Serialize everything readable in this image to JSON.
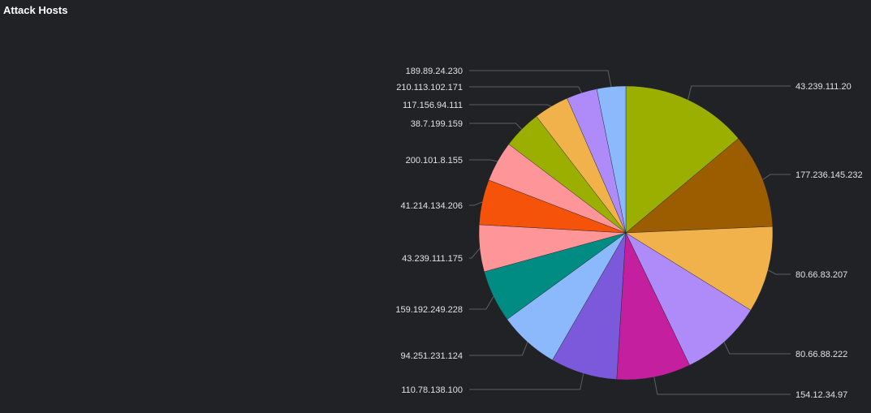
{
  "panel": {
    "title": "Attack Hosts"
  },
  "chart_data": {
    "type": "pie",
    "title": "Attack Hosts",
    "slices": [
      {
        "label": "43.239.111.20",
        "value": 14.0,
        "color": "#9aaf00"
      },
      {
        "label": "177.236.145.232",
        "value": 10.5,
        "color": "#9b5d00"
      },
      {
        "label": "80.66.83.207",
        "value": 9.6,
        "color": "#f2b24b"
      },
      {
        "label": "80.66.88.222",
        "value": 9.1,
        "color": "#af8bfa"
      },
      {
        "label": "154.12.34.97",
        "value": 8.2,
        "color": "#c41f9e"
      },
      {
        "label": "110.78.138.100",
        "value": 7.4,
        "color": "#7c58da"
      },
      {
        "label": "94.251.231.124",
        "value": 6.7,
        "color": "#8cb9fb"
      },
      {
        "label": "159.192.249.228",
        "value": 5.8,
        "color": "#008c82"
      },
      {
        "label": "43.239.111.175",
        "value": 5.2,
        "color": "#fe9599"
      },
      {
        "label": "41.214.134.206",
        "value": 5.0,
        "color": "#f5520a"
      },
      {
        "label": "200.101.8.155",
        "value": 4.5,
        "color": "#fe9599"
      },
      {
        "label": "38.7.199.159",
        "value": 4.3,
        "color": "#9aaf00"
      },
      {
        "label": "117.156.94.111",
        "value": 3.9,
        "color": "#f2b24b"
      },
      {
        "label": "210.113.102.171",
        "value": 3.4,
        "color": "#af8bfa"
      },
      {
        "label": "189.89.24.230",
        "value": 3.2,
        "color": "#8cb9fb"
      }
    ]
  }
}
